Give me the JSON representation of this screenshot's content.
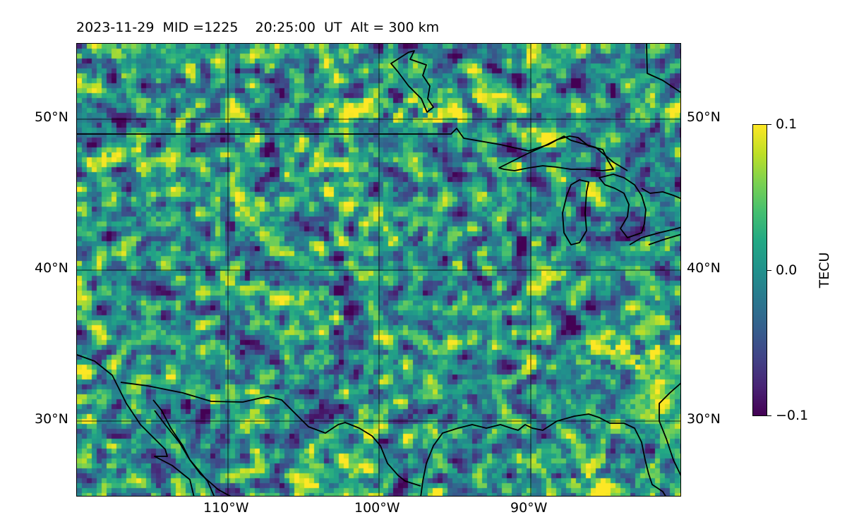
{
  "header": {
    "title": "2023-11-29  MID =1225    20:25:00  UT  Alt = 300 km"
  },
  "map": {
    "extent": {
      "lon_min": -119.8,
      "lon_max": -80.0,
      "lat_min": 25.0,
      "lat_max": 55.0
    },
    "lat_gridlines": [
      30,
      40,
      50
    ],
    "lon_gridlines": [
      -110,
      -100,
      -90
    ],
    "lat_labels": [
      "30°N",
      "40°N",
      "50°N"
    ],
    "lon_labels": [
      "110°W",
      "100°W",
      "90°W"
    ],
    "field": "TEC perturbation (viridis colormap), fine grid"
  },
  "colorbar": {
    "label": "TECU",
    "min": -0.1,
    "max": 0.1,
    "ticks": [
      "0.1",
      "0.0",
      "−0.1"
    ],
    "colormap": "viridis"
  }
}
